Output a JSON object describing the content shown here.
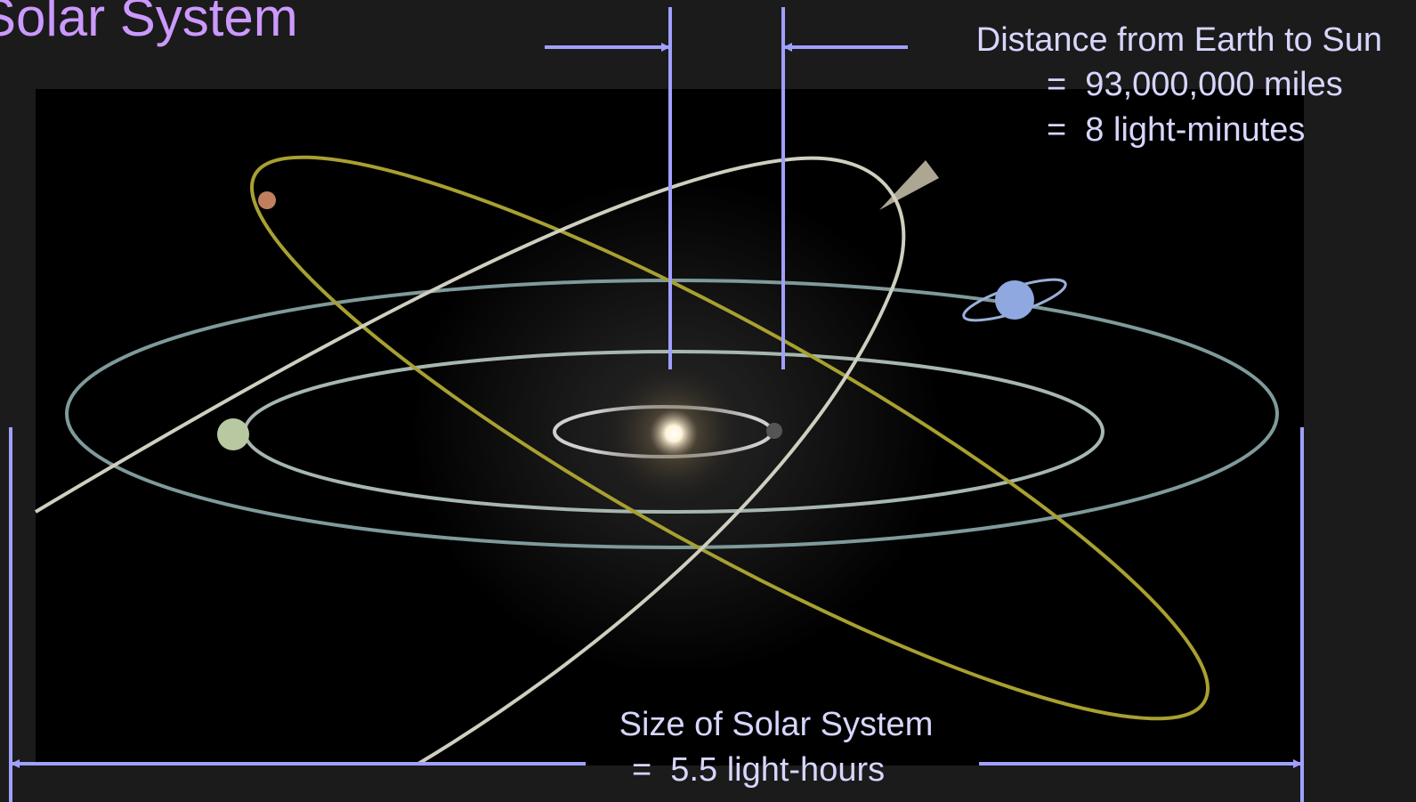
{
  "slide": {
    "title": "Solar System",
    "earth_sun": {
      "heading": "Distance from Earth to Sun",
      "lines": [
        "=  93,000,000 miles",
        "=  8 light-minutes"
      ]
    },
    "system_size": {
      "heading": "Size of Solar System",
      "line": "=  5.5 light-hours"
    }
  }
}
